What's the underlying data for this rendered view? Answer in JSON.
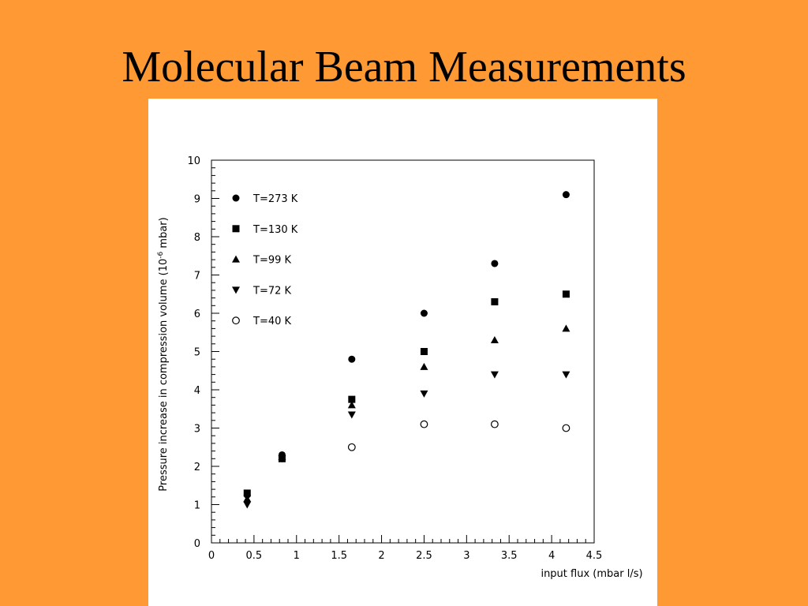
{
  "slide": {
    "title": "Molecular Beam Measurements",
    "background_color": "#FF9933"
  },
  "chart_data": {
    "type": "scatter",
    "title": "",
    "xlabel": "input flux (mbar l/s)",
    "ylabel_prefix": "Pressure increase in compression volume (10",
    "ylabel_exponent": "-6",
    "ylabel_suffix": " mbar)",
    "xlim": [
      0,
      4.5
    ],
    "ylim": [
      0,
      10
    ],
    "x_ticks": [
      "0",
      "0.5",
      "1",
      "1.5",
      "2",
      "2.5",
      "3",
      "3.5",
      "4",
      "4.5"
    ],
    "y_ticks": [
      "0",
      "1",
      "2",
      "3",
      "4",
      "5",
      "6",
      "7",
      "8",
      "9",
      "10"
    ],
    "grid": false,
    "legend_position": "top-left",
    "series": [
      {
        "name": "T=273 K",
        "marker": "filled-circle",
        "points": [
          [
            0.42,
            1.25
          ],
          [
            0.83,
            2.3
          ],
          [
            1.65,
            4.8
          ],
          [
            2.5,
            6.0
          ],
          [
            3.33,
            7.3
          ],
          [
            4.17,
            9.1
          ]
        ]
      },
      {
        "name": "T=130 K",
        "marker": "filled-square",
        "points": [
          [
            0.42,
            1.3
          ],
          [
            0.83,
            2.2
          ],
          [
            1.65,
            3.75
          ],
          [
            2.5,
            5.0
          ],
          [
            3.33,
            6.3
          ],
          [
            4.17,
            6.5
          ]
        ]
      },
      {
        "name": "T=99 K",
        "marker": "filled-triangle-up",
        "points": [
          [
            0.42,
            1.15
          ],
          [
            0.83,
            2.25
          ],
          [
            1.65,
            3.6
          ],
          [
            2.5,
            4.6
          ],
          [
            3.33,
            5.3
          ],
          [
            4.17,
            5.6
          ]
        ]
      },
      {
        "name": "T=72 K",
        "marker": "filled-triangle-down",
        "points": [
          [
            0.42,
            1.0
          ],
          [
            0.83,
            2.2
          ],
          [
            1.65,
            3.35
          ],
          [
            2.5,
            3.9
          ],
          [
            3.33,
            4.4
          ],
          [
            4.17,
            4.4
          ]
        ]
      },
      {
        "name": "T=40 K",
        "marker": "open-circle",
        "points": [
          [
            1.65,
            2.5
          ],
          [
            2.5,
            3.1
          ],
          [
            3.33,
            3.1
          ],
          [
            4.17,
            3.0
          ]
        ]
      }
    ]
  }
}
